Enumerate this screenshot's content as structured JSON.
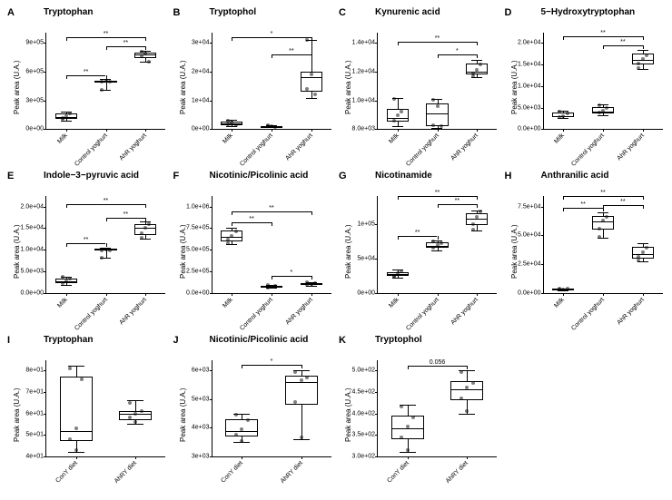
{
  "global": {
    "ylab": "Peak area (U.A.)",
    "box_fill": "#ffffff",
    "box_stroke": "#000000",
    "point_color": "rgba(0,0,0,0.5)",
    "font_family": "Arial",
    "title_fontsize": 10,
    "letter_fontsize": 11,
    "axis_fontsize": 8,
    "tick_fontsize": 7
  },
  "x_three": [
    "Milk",
    "Control yoghurt",
    "AhR yoghurt"
  ],
  "x_two": [
    "ConY diet",
    "AhRY diet"
  ],
  "panels": [
    {
      "letter": "A",
      "title": "Tryptophan",
      "xcats": "x_three",
      "ylim": [
        0,
        900000
      ],
      "yticks": [
        0,
        300000,
        600000,
        900000
      ],
      "ytick_labels": [
        "0e+00",
        "3e+05",
        "6e+05",
        "9e+05"
      ],
      "boxes": [
        {
          "q1": 110000,
          "med": 130000,
          "q3": 160000,
          "wlo": 90000,
          "whi": 180000,
          "pts": [
            120000,
            140000,
            160000,
            105000
          ]
        },
        {
          "q1": 490000,
          "med": 500000,
          "q3": 510000,
          "wlo": 410000,
          "whi": 520000,
          "pts": [
            500000,
            505000,
            495000,
            410000
          ]
        },
        {
          "q1": 740000,
          "med": 780000,
          "q3": 800000,
          "wlo": 700000,
          "whi": 820000,
          "pts": [
            760000,
            790000,
            700000,
            810000
          ]
        }
      ],
      "sig": [
        {
          "i": 0,
          "j": 1,
          "y": 560000,
          "label": "**"
        },
        {
          "i": 1,
          "j": 2,
          "y": 870000,
          "label": "**"
        },
        {
          "i": 0,
          "j": 2,
          "y": 960000,
          "label": "**"
        }
      ]
    },
    {
      "letter": "B",
      "title": "Tryptophol",
      "xcats": "x_three",
      "ylim": [
        0,
        30000
      ],
      "yticks": [
        0,
        10000,
        20000,
        30000
      ],
      "ytick_labels": [
        "0e+00",
        "1e+04",
        "2e+04",
        "3e+04"
      ],
      "boxes": [
        {
          "q1": 1500,
          "med": 2000,
          "q3": 2500,
          "wlo": 1200,
          "whi": 3200,
          "pts": [
            1800,
            2200,
            1500,
            3000
          ]
        },
        {
          "q1": 800,
          "med": 1000,
          "q3": 1200,
          "wlo": 700,
          "whi": 1400,
          "pts": [
            900,
            1100,
            800,
            1300
          ]
        },
        {
          "q1": 13000,
          "med": 18000,
          "q3": 20000,
          "wlo": 11000,
          "whi": 31000,
          "pts": [
            14000,
            19000,
            12000,
            31000
          ]
        }
      ],
      "sig": [
        {
          "i": 1,
          "j": 2,
          "y": 26000,
          "label": "**"
        },
        {
          "i": 0,
          "j": 2,
          "y": 32000,
          "label": "*"
        }
      ]
    },
    {
      "letter": "C",
      "title": "Kynurenic acid",
      "xcats": "x_three",
      "ylim": [
        8000,
        14000
      ],
      "yticks": [
        8000,
        10000,
        12000,
        14000
      ],
      "ytick_labels": [
        "8.0e+03",
        "1.0e+04",
        "1.2e+04",
        "1.4e+04"
      ],
      "boxes": [
        {
          "q1": 8500,
          "med": 8800,
          "q3": 9400,
          "wlo": 8200,
          "whi": 10200,
          "pts": [
            8600,
            9000,
            9200,
            10100
          ]
        },
        {
          "q1": 8200,
          "med": 9100,
          "q3": 9800,
          "wlo": 8100,
          "whi": 10100,
          "pts": [
            8300,
            9600,
            8200,
            10050
          ]
        },
        {
          "q1": 11800,
          "med": 12000,
          "q3": 12600,
          "wlo": 11600,
          "whi": 12800,
          "pts": [
            11900,
            12100,
            12500,
            11700
          ]
        }
      ],
      "sig": [
        {
          "i": 1,
          "j": 2,
          "y": 13200,
          "label": "*"
        },
        {
          "i": 0,
          "j": 2,
          "y": 14100,
          "label": "**"
        }
      ]
    },
    {
      "letter": "D",
      "title": "5−Hydroxytryptophan",
      "xcats": "x_three",
      "ylim": [
        0,
        20000
      ],
      "yticks": [
        0,
        5000,
        10000,
        15000,
        20000
      ],
      "ytick_labels": [
        "0.0e+00",
        "5.0e+03",
        "1.0e+04",
        "1.5e+04",
        "2.0e+04"
      ],
      "boxes": [
        {
          "q1": 2800,
          "med": 3000,
          "q3": 3800,
          "wlo": 2500,
          "whi": 4200,
          "pts": [
            2900,
            3100,
            3700,
            4100
          ]
        },
        {
          "q1": 3600,
          "med": 4000,
          "q3": 5200,
          "wlo": 3200,
          "whi": 5800,
          "pts": [
            3800,
            4200,
            5000,
            5600
          ]
        },
        {
          "q1": 15000,
          "med": 16000,
          "q3": 17500,
          "wlo": 14000,
          "whi": 18500,
          "pts": [
            15200,
            16200,
            17200,
            14200
          ]
        }
      ],
      "sig": [
        {
          "i": 1,
          "j": 2,
          "y": 19500,
          "label": "**"
        },
        {
          "i": 0,
          "j": 2,
          "y": 21500,
          "label": "**"
        }
      ]
    },
    {
      "letter": "E",
      "title": "Indole−3−pyruvic acid",
      "xcats": "x_three",
      "ylim": [
        0,
        20000
      ],
      "yticks": [
        0,
        5000,
        10000,
        15000,
        20000
      ],
      "ytick_labels": [
        "0.0e+00",
        "5.0e+03",
        "1.0e+04",
        "1.5e+04",
        "2.0e+04"
      ],
      "boxes": [
        {
          "q1": 2200,
          "med": 2600,
          "q3": 3400,
          "wlo": 1800,
          "whi": 3800,
          "pts": [
            2300,
            2700,
            3300,
            3700
          ]
        },
        {
          "q1": 9800,
          "med": 10000,
          "q3": 10200,
          "wlo": 8200,
          "whi": 10400,
          "pts": [
            9900,
            10100,
            9800,
            8200
          ]
        },
        {
          "q1": 13500,
          "med": 15000,
          "q3": 16000,
          "wlo": 12500,
          "whi": 16500,
          "pts": [
            13800,
            15200,
            15900,
            12700
          ]
        }
      ],
      "sig": [
        {
          "i": 0,
          "j": 1,
          "y": 11500,
          "label": "**"
        },
        {
          "i": 1,
          "j": 2,
          "y": 17500,
          "label": "**"
        },
        {
          "i": 0,
          "j": 2,
          "y": 20500,
          "label": "**"
        }
      ]
    },
    {
      "letter": "F",
      "title": "Nicotinic/Picolinic acid",
      "xcats": "x_three",
      "ylim": [
        0,
        1000000
      ],
      "yticks": [
        0,
        250000,
        500000,
        750000,
        1000000
      ],
      "ytick_labels": [
        "0.0e+00",
        "2.5e+05",
        "5.0e+05",
        "7.5e+05",
        "1.0e+06"
      ],
      "boxes": [
        {
          "q1": 600000,
          "med": 650000,
          "q3": 720000,
          "wlo": 560000,
          "whi": 760000,
          "pts": [
            620000,
            660000,
            710000,
            580000
          ]
        },
        {
          "q1": 60000,
          "med": 70000,
          "q3": 80000,
          "wlo": 55000,
          "whi": 90000,
          "pts": [
            62000,
            72000,
            78000,
            88000
          ]
        },
        {
          "q1": 90000,
          "med": 100000,
          "q3": 110000,
          "wlo": 85000,
          "whi": 120000,
          "pts": [
            92000,
            102000,
            108000,
            118000
          ]
        }
      ],
      "sig": [
        {
          "i": 0,
          "j": 1,
          "y": 820000,
          "label": "**"
        },
        {
          "i": 1,
          "j": 2,
          "y": 200000,
          "label": "*"
        },
        {
          "i": 0,
          "j": 2,
          "y": 940000,
          "label": "**"
        }
      ]
    },
    {
      "letter": "G",
      "title": "Nicotinamide",
      "xcats": "x_three",
      "ylim": [
        0,
        125000
      ],
      "yticks": [
        0,
        50000,
        100000
      ],
      "ytick_labels": [
        "0e+00",
        "5e+04",
        "1e+05"
      ],
      "boxes": [
        {
          "q1": 24000,
          "med": 27000,
          "q3": 30000,
          "wlo": 22000,
          "whi": 34000,
          "pts": [
            25000,
            28000,
            31000,
            23000
          ]
        },
        {
          "q1": 65000,
          "med": 68000,
          "q3": 73000,
          "wlo": 62000,
          "whi": 76000,
          "pts": [
            66000,
            69000,
            72000,
            75000
          ]
        },
        {
          "q1": 98000,
          "med": 108000,
          "q3": 115000,
          "wlo": 90000,
          "whi": 120000,
          "pts": [
            100000,
            110000,
            118000,
            92000
          ]
        }
      ],
      "sig": [
        {
          "i": 0,
          "j": 1,
          "y": 82000,
          "label": "**"
        },
        {
          "i": 1,
          "j": 2,
          "y": 128000,
          "label": "**"
        },
        {
          "i": 0,
          "j": 2,
          "y": 140000,
          "label": "**"
        }
      ]
    },
    {
      "letter": "H",
      "title": "Anthranilic acid",
      "xcats": "x_three",
      "ylim": [
        0,
        75000
      ],
      "yticks": [
        0,
        25000,
        50000,
        75000
      ],
      "ytick_labels": [
        "0.0e+00",
        "2.5e+04",
        "5.0e+04",
        "7.5e+04"
      ],
      "boxes": [
        {
          "q1": 2500,
          "med": 3000,
          "q3": 3500,
          "wlo": 2200,
          "whi": 4000,
          "pts": [
            2600,
            3100,
            3400,
            3900
          ]
        },
        {
          "q1": 55000,
          "med": 62000,
          "q3": 67000,
          "wlo": 48000,
          "whi": 70000,
          "pts": [
            56000,
            63000,
            66000,
            49000
          ]
        },
        {
          "q1": 30000,
          "med": 34000,
          "q3": 40000,
          "wlo": 27000,
          "whi": 43000,
          "pts": [
            31000,
            35000,
            39000,
            28000
          ]
        }
      ],
      "sig": [
        {
          "i": 0,
          "j": 1,
          "y": 74000,
          "label": "**"
        },
        {
          "i": 1,
          "j": 2,
          "y": 76000,
          "label": "**"
        },
        {
          "i": 0,
          "j": 2,
          "y": 84000,
          "label": "**"
        }
      ]
    },
    {
      "letter": "I",
      "title": "Tryptophan",
      "xcats": "x_two",
      "ylim": [
        40,
        80
      ],
      "yticks": [
        40,
        50,
        60,
        70,
        80
      ],
      "ytick_labels": [
        "4e+01",
        "5e+01",
        "6e+01",
        "7e+01",
        "8e+01"
      ],
      "boxes": [
        {
          "q1": 47,
          "med": 52,
          "q3": 77,
          "wlo": 42,
          "whi": 82,
          "pts": [
            48,
            53,
            76,
            81,
            43
          ]
        },
        {
          "q1": 57,
          "med": 60,
          "q3": 61,
          "wlo": 55,
          "whi": 66,
          "pts": [
            58,
            60,
            61,
            65,
            56
          ]
        }
      ],
      "sig": []
    },
    {
      "letter": "J",
      "title": "Nicotinic/Picolinic acid",
      "xcats": "x_two",
      "ylim": [
        3000,
        6000
      ],
      "yticks": [
        3000,
        4000,
        5000,
        6000
      ],
      "ytick_labels": [
        "3e+03",
        "4e+03",
        "5e+03",
        "6e+03"
      ],
      "boxes": [
        {
          "q1": 3700,
          "med": 3900,
          "q3": 4300,
          "wlo": 3500,
          "whi": 4500,
          "pts": [
            3750,
            3950,
            4250,
            4450,
            3550
          ]
        },
        {
          "q1": 4800,
          "med": 5600,
          "q3": 5800,
          "wlo": 3600,
          "whi": 6000,
          "pts": [
            4900,
            5650,
            5750,
            5950,
            3650
          ]
        }
      ],
      "sig": [
        {
          "i": 0,
          "j": 1,
          "y": 6200,
          "label": "*"
        }
      ]
    },
    {
      "letter": "K",
      "title": "Tryptophol",
      "xcats": "x_two",
      "ylim": [
        300,
        500
      ],
      "yticks": [
        300,
        350,
        400,
        450,
        500
      ],
      "ytick_labels": [
        "3.0e+02",
        "3.5e+02",
        "4.0e+02",
        "4.5e+02",
        "5.0e+02"
      ],
      "boxes": [
        {
          "q1": 340,
          "med": 365,
          "q3": 395,
          "wlo": 310,
          "whi": 420,
          "pts": [
            345,
            370,
            390,
            415,
            315
          ]
        },
        {
          "q1": 430,
          "med": 455,
          "q3": 475,
          "wlo": 400,
          "whi": 500,
          "pts": [
            435,
            460,
            470,
            495,
            405
          ]
        }
      ],
      "sig": [
        {
          "i": 0,
          "j": 1,
          "y": 510,
          "label": "0.056"
        }
      ]
    },
    {
      "letter": "",
      "title": "",
      "empty": true
    }
  ]
}
